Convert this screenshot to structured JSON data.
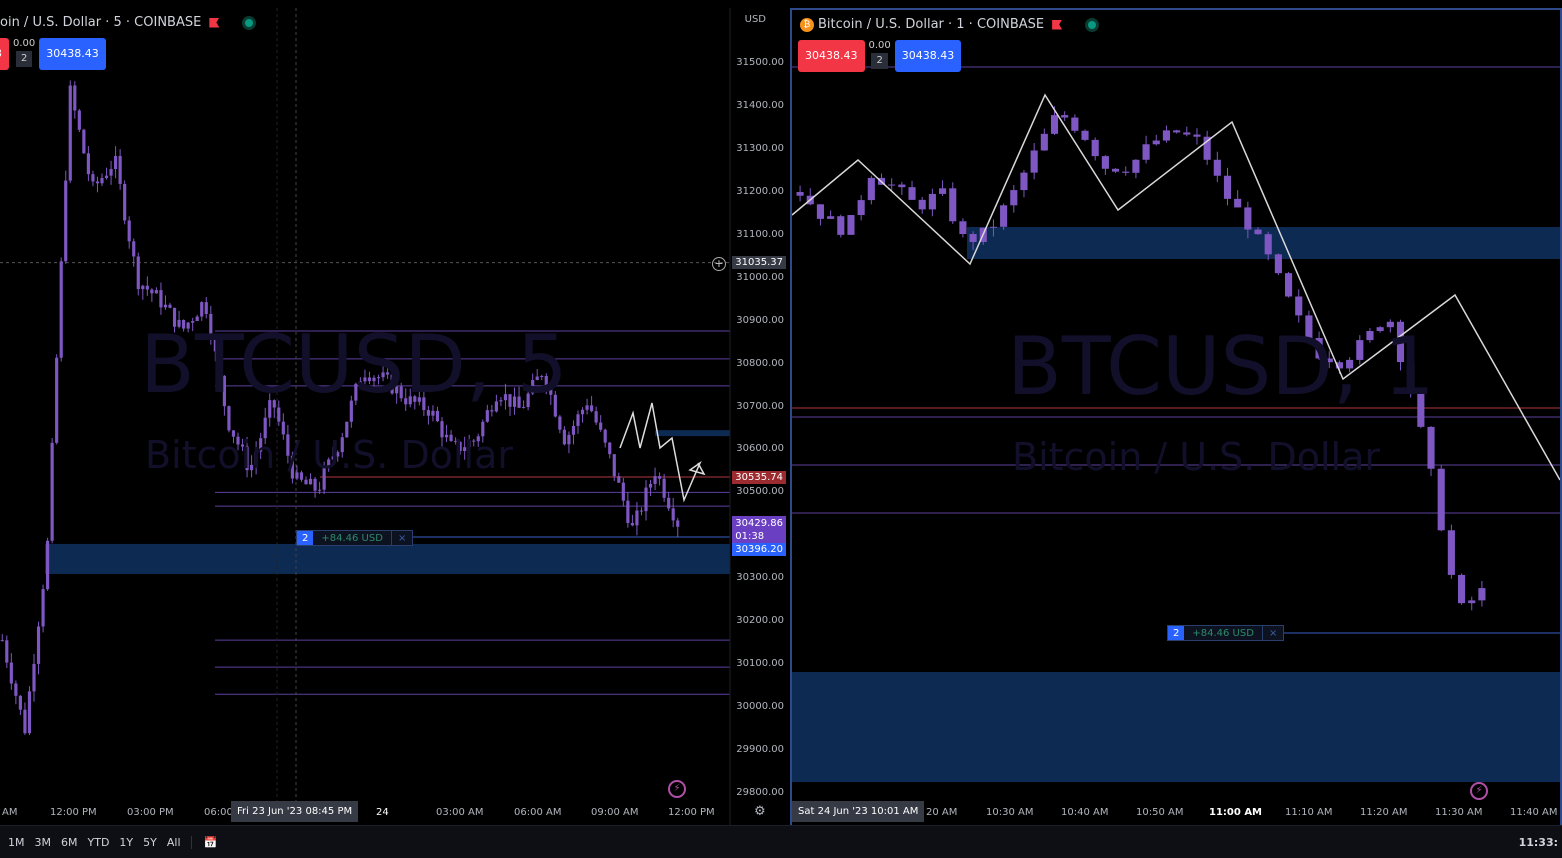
{
  "left_chart": {
    "title": "oin / U.S. Dollar · 5 · COINBASE",
    "sell_price": "3",
    "spread": "0.00",
    "qty": "2",
    "buy_price": "30438.43",
    "watermark_symbol": "BTCUSD, 5",
    "watermark_name": "Bitcoin / U.S. Dollar",
    "currency": "USD",
    "price_ticks": [
      "31500.00",
      "31400.00",
      "31300.00",
      "31200.00",
      "31100.00",
      "31000.00",
      "30900.00",
      "30800.00",
      "30700.00",
      "30600.00",
      "30500.00",
      "30400.00",
      "30300.00",
      "30200.00",
      "30100.00",
      "30000.00",
      "29900.00",
      "29800.00"
    ],
    "crosshair_price": "31035.37",
    "red_line_price": "30535.74",
    "last_price": "30429.86",
    "countdown": "01:38",
    "position_price": "30396.20",
    "position": {
      "qty": "2",
      "pnl": "+84.46 USD",
      "close": "×"
    },
    "time_ticks": [
      "AM",
      "12:00 PM",
      "03:00 PM",
      "06:00",
      "24",
      "03:00 AM",
      "06:00 AM",
      "09:00 AM",
      "12:00 PM"
    ],
    "crosshair_time": "Fri 23 Jun '23   08:45 PM",
    "approx_closes": [
      30156,
      29947,
      30366,
      31437,
      31204,
      31274,
      30995,
      30948,
      30878,
      30948,
      30669,
      30552,
      30715,
      30529,
      30506,
      30622,
      30785,
      30762,
      30715,
      30692,
      30599,
      30622,
      30738,
      30692,
      30785,
      30622,
      30715,
      30576,
      30413,
      30552,
      30430
    ],
    "levels": [
      30876,
      30811,
      30748,
      30500,
      30468,
      30156,
      30093,
      30030
    ]
  },
  "right_chart": {
    "title": "Bitcoin / U.S. Dollar · 1 · COINBASE",
    "sell_price": "30438.43",
    "spread": "0.00",
    "qty": "2",
    "buy_price": "30438.43",
    "watermark_symbol": "BTCUSD, 1",
    "watermark_name": "Bitcoin / U.S. Dollar",
    "position": {
      "qty": "2",
      "pnl": "+84.46 USD",
      "close": "×"
    },
    "time_ticks": [
      "20 AM",
      "10:30 AM",
      "10:40 AM",
      "10:50 AM",
      "11:00 AM",
      "11:10 AM",
      "11:20 AM",
      "11:30 AM",
      "11:40 AM"
    ],
    "crosshair_time": "Sat 24 Jun '23   10:01 AM",
    "approx_closes": [
      31140,
      31070,
      31028,
      31196,
      31154,
      31098,
      31140,
      31000,
      31028,
      31126,
      31252,
      31364,
      31308,
      31210,
      31210,
      31280,
      31308,
      31280,
      31140,
      31056,
      30944,
      30804,
      30692,
      30664,
      30720,
      30804,
      30580,
      30300,
      29964,
      30020
    ]
  },
  "bottom": {
    "ranges": [
      "1M",
      "3M",
      "6M",
      "YTD",
      "1Y",
      "5Y",
      "All"
    ],
    "clock": "11:33:"
  },
  "colors": {
    "candle": "#7e57c2",
    "level": "#5c3f9e",
    "red_level": "#b2373c",
    "zone": "#0d2a52",
    "accent": "#2962ff"
  }
}
